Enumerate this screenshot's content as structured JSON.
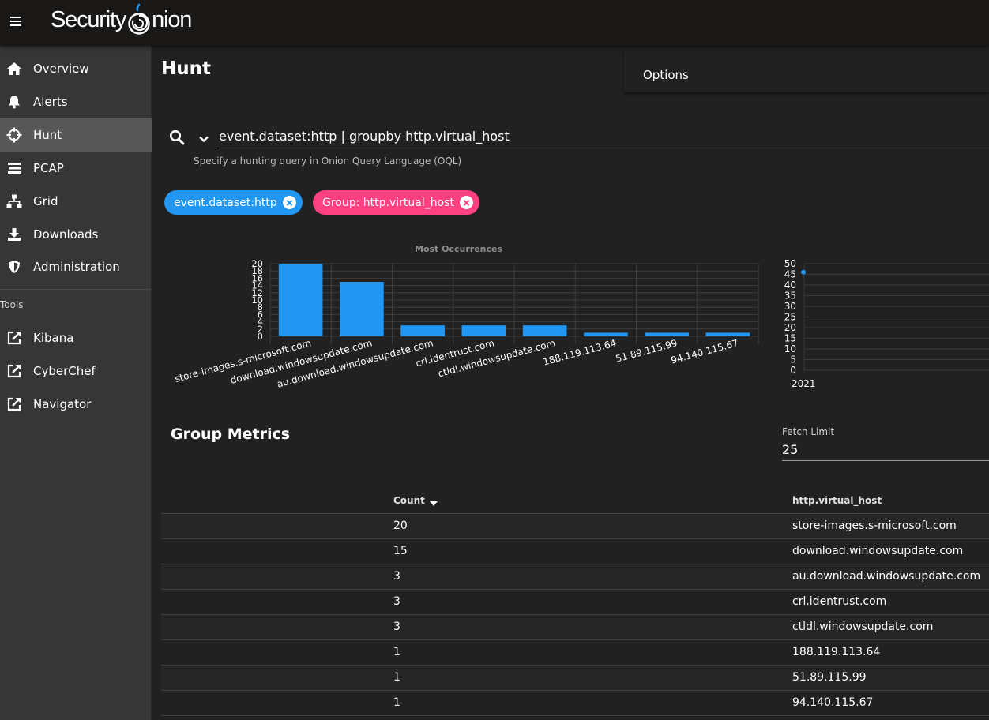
{
  "app": {
    "logo_text_left": "Security",
    "logo_text_right": "nion"
  },
  "sidebar": {
    "items": [
      {
        "label": "Overview",
        "icon": "home-icon"
      },
      {
        "label": "Alerts",
        "icon": "bell-icon"
      },
      {
        "label": "Hunt",
        "icon": "crosshairs-icon",
        "active": true
      },
      {
        "label": "PCAP",
        "icon": "stream-icon"
      },
      {
        "label": "Grid",
        "icon": "sitemap-icon"
      },
      {
        "label": "Downloads",
        "icon": "download-icon"
      },
      {
        "label": "Administration",
        "icon": "shield-icon"
      }
    ],
    "tools_label": "Tools",
    "tools": [
      {
        "label": "Kibana",
        "icon": "external-link-icon"
      },
      {
        "label": "CyberChef",
        "icon": "external-link-icon"
      },
      {
        "label": "Navigator",
        "icon": "external-link-icon"
      }
    ]
  },
  "page": {
    "title": "Hunt",
    "options_label": "Options"
  },
  "search": {
    "query": "event.dataset:http | groupby http.virtual_host",
    "hint": "Specify a hunting query in Onion Query Language (OQL)"
  },
  "chips": [
    {
      "label": "event.dataset:http",
      "color": "#2196f3"
    },
    {
      "label": "Group: http.virtual_host",
      "color": "#ff4081"
    }
  ],
  "chart_data": [
    {
      "type": "bar",
      "title": "Most Occurrences",
      "categories": [
        "store-images.s-microsoft.com",
        "download.windowsupdate.com",
        "au.download.windowsupdate.com",
        "crl.identrust.com",
        "ctldl.windowsupdate.com",
        "188.119.113.64",
        "51.89.115.99",
        "94.140.115.67"
      ],
      "values": [
        20,
        15,
        3,
        3,
        3,
        1,
        1,
        1
      ],
      "yticks": [
        0,
        2,
        4,
        6,
        8,
        10,
        12,
        14,
        16,
        18,
        20
      ],
      "ylim": [
        0,
        20
      ],
      "color": "#2196f3"
    },
    {
      "type": "scatter",
      "x": [
        "2021"
      ],
      "y": [
        46
      ],
      "xticks": [
        "2021"
      ],
      "yticks": [
        0,
        5,
        10,
        15,
        20,
        25,
        30,
        35,
        40,
        45,
        50
      ],
      "ylim": [
        0,
        50
      ],
      "color": "#2196f3"
    }
  ],
  "group_metrics": {
    "title": "Group Metrics",
    "fetch_limit_label": "Fetch Limit",
    "fetch_limit": "25",
    "headers": {
      "count": "Count",
      "host": "http.virtual_host"
    },
    "rows": [
      {
        "count": "20",
        "host": "store-images.s-microsoft.com"
      },
      {
        "count": "15",
        "host": "download.windowsupdate.com"
      },
      {
        "count": "3",
        "host": "au.download.windowsupdate.com"
      },
      {
        "count": "3",
        "host": "crl.identrust.com"
      },
      {
        "count": "3",
        "host": "ctldl.windowsupdate.com"
      },
      {
        "count": "1",
        "host": "188.119.113.64"
      },
      {
        "count": "1",
        "host": "51.89.115.99"
      },
      {
        "count": "1",
        "host": "94.140.115.67"
      }
    ]
  }
}
